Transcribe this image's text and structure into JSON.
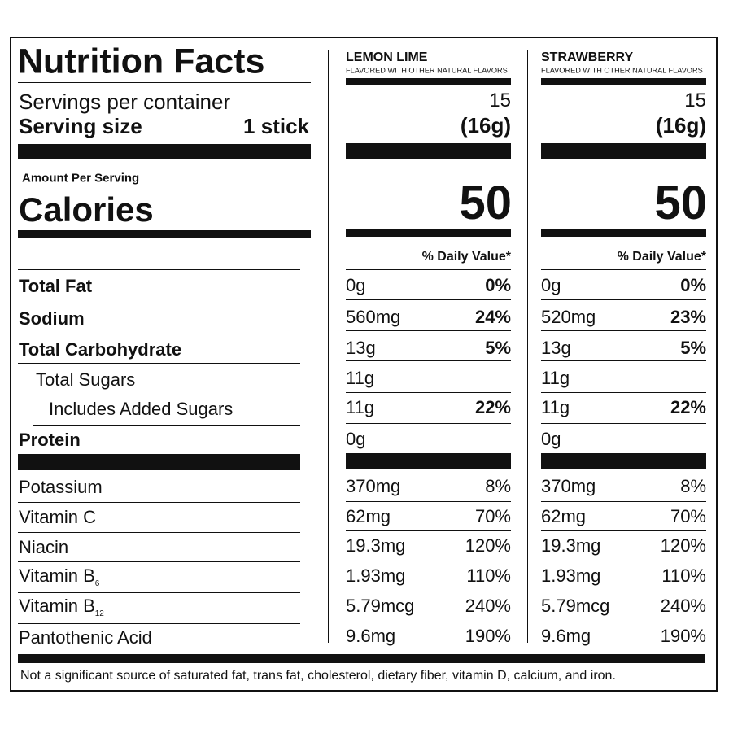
{
  "title": "Nutrition Facts",
  "servings_label": "Servings per container",
  "serving_size_label": "Serving size",
  "serving_size": "1 stick",
  "amount_per_serving": "Amount Per Serving",
  "calories_label": "Calories",
  "daily_value_header": "% Daily Value*",
  "nutrients": [
    "Total Fat",
    "Sodium",
    "Total Carbohydrate",
    "Total Sugars",
    "Includes Added Sugars",
    "Protein"
  ],
  "vitamins": [
    {
      "name": "Potassium"
    },
    {
      "name": "Vitamin C"
    },
    {
      "name": "Niacin"
    },
    {
      "name": "Vitamin B",
      "sub": "6"
    },
    {
      "name": "Vitamin B",
      "sub": "12"
    },
    {
      "name": "Pantothenic Acid"
    }
  ],
  "products": [
    {
      "name": "LEMON LIME",
      "subtitle": "FLAVORED WITH OTHER NATURAL FLAVORS",
      "servings": "15",
      "serving_size": "(16g)",
      "calories": "50",
      "nutrients": [
        {
          "amount": "0g",
          "dv": "0%"
        },
        {
          "amount": "560mg",
          "dv": "24%"
        },
        {
          "amount": "13g",
          "dv": "5%"
        },
        {
          "amount": "11g"
        },
        {
          "amount": "11g",
          "dv": "22%"
        },
        {
          "amount": "0g"
        }
      ],
      "vitamins": [
        {
          "amount": "370mg",
          "dv": "8%"
        },
        {
          "amount": "62mg",
          "dv": "70%"
        },
        {
          "amount": "19.3mg",
          "dv": "120%"
        },
        {
          "amount": "1.93mg",
          "dv": "110%"
        },
        {
          "amount": "5.79mcg",
          "dv": "240%"
        },
        {
          "amount": "9.6mg",
          "dv": "190%"
        }
      ]
    },
    {
      "name": "STRAWBERRY",
      "subtitle": "FLAVORED WITH OTHER NATURAL FLAVORS",
      "servings": "15",
      "serving_size": "(16g)",
      "calories": "50",
      "nutrients": [
        {
          "amount": "0g",
          "dv": "0%"
        },
        {
          "amount": "520mg",
          "dv": "23%"
        },
        {
          "amount": "13g",
          "dv": "5%"
        },
        {
          "amount": "11g"
        },
        {
          "amount": "11g",
          "dv": "22%"
        },
        {
          "amount": "0g"
        }
      ],
      "vitamins": [
        {
          "amount": "370mg",
          "dv": "8%"
        },
        {
          "amount": "62mg",
          "dv": "70%"
        },
        {
          "amount": "19.3mg",
          "dv": "120%"
        },
        {
          "amount": "1.93mg",
          "dv": "110%"
        },
        {
          "amount": "5.79mcg",
          "dv": "240%"
        },
        {
          "amount": "9.6mg",
          "dv": "190%"
        }
      ]
    }
  ],
  "footnote": "Not a significant source of saturated fat, trans fat, cholesterol, dietary fiber, vitamin D, calcium, and iron."
}
